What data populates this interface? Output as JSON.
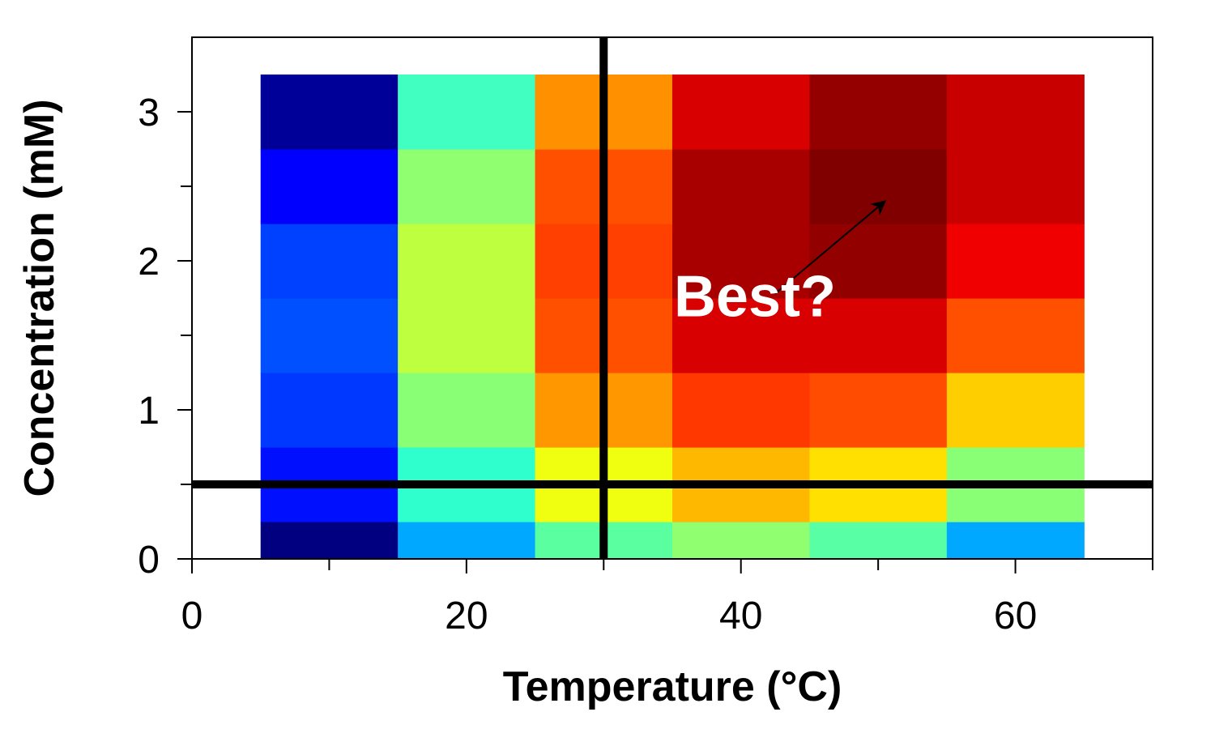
{
  "chart_data": {
    "type": "heatmap",
    "xlabel": "Temperature (°C)",
    "ylabel": "Concentration (mM)",
    "xlim": [
      0,
      70
    ],
    "ylim": [
      0,
      3.5
    ],
    "x_ticks": [
      0,
      20,
      40,
      60
    ],
    "y_ticks": [
      0,
      1,
      2,
      3
    ],
    "x_minor_ticks": [
      10,
      30,
      50,
      70
    ],
    "y_minor_ticks": [
      0.5,
      1.5,
      2.5
    ],
    "x_centers": [
      10,
      20,
      30,
      40,
      50,
      60
    ],
    "x_cell_width": 10,
    "y_edges": [
      0,
      0.25,
      0.75,
      1.25,
      1.75,
      2.25,
      2.75,
      3.25
    ],
    "grid": false,
    "colors": [
      [
        "#000080",
        "#00A8FF",
        "#5AFFA0",
        "#90FF70",
        "#58FFA4",
        "#00A8FF"
      ],
      [
        "#0010FF",
        "#2EFFCC",
        "#F0FF10",
        "#FFB800",
        "#FFE000",
        "#88FF74"
      ],
      [
        "#0038FF",
        "#88FF74",
        "#FF9800",
        "#FF3800",
        "#FF4C00",
        "#FFCE00"
      ],
      [
        "#0050FF",
        "#BEFF40",
        "#FF5000",
        "#D80000",
        "#D80000",
        "#FF5000"
      ],
      [
        "#0040FF",
        "#BEFF40",
        "#FF4000",
        "#A80000",
        "#920000",
        "#F00000"
      ],
      [
        "#0000FF",
        "#90FF70",
        "#FF5000",
        "#A80000",
        "#800000",
        "#C80000"
      ],
      [
        "#000098",
        "#40FFC0",
        "#FF9000",
        "#D80000",
        "#940000",
        "#C80000"
      ]
    ],
    "reference_lines": [
      {
        "orientation": "vertical",
        "x": 30
      },
      {
        "orientation": "horizontal",
        "y": 0.5
      }
    ],
    "annotation": {
      "text": "Best?",
      "text_at": [
        36,
        1.78
      ],
      "arrow_from": [
        42.5,
        1.78
      ],
      "arrow_to": [
        50.5,
        2.4
      ]
    }
  }
}
